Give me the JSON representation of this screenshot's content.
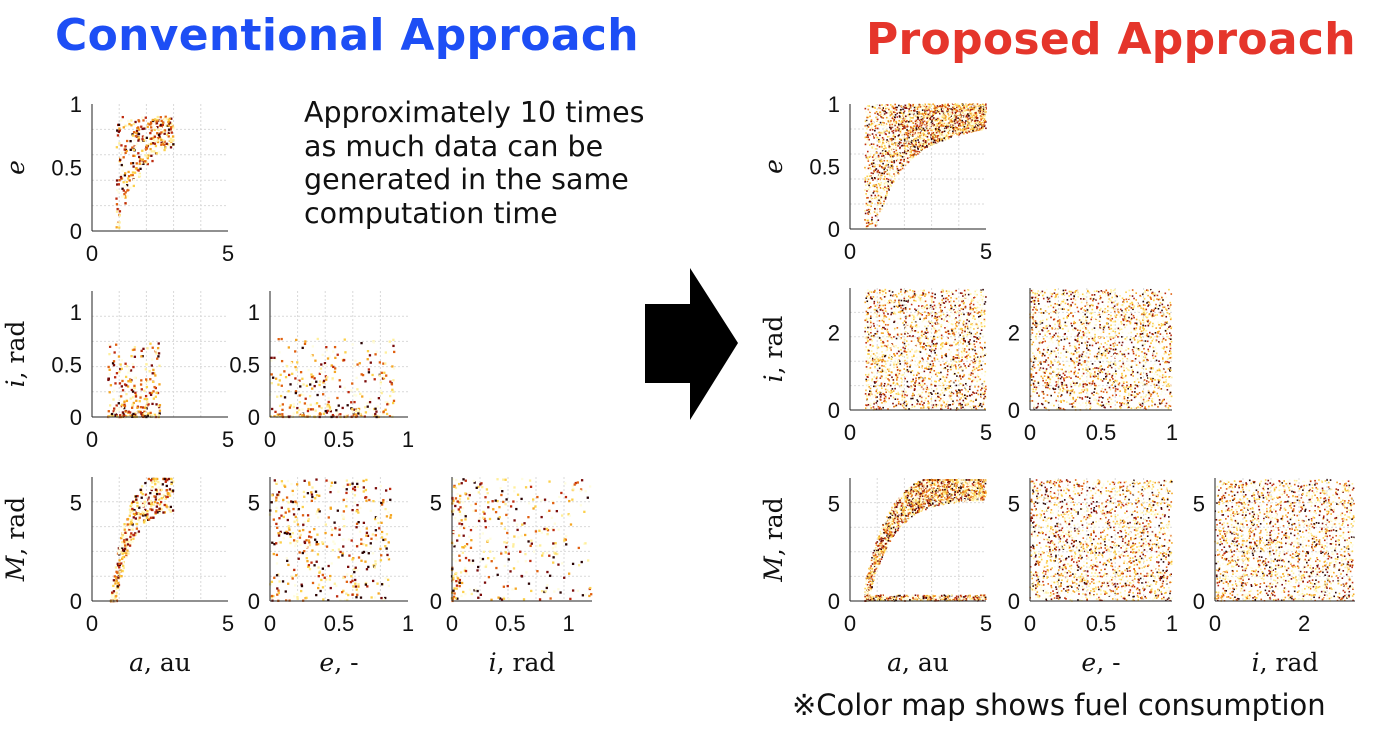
{
  "colors": {
    "conventional": "#1d4ef5",
    "proposed": "#e5352b",
    "arrow": "#000000",
    "grid": "#d9d9d9",
    "colormap": [
      "#fffde0",
      "#ffef9c",
      "#fcd04a",
      "#f5a623",
      "#e06010",
      "#bd2a0e",
      "#7a0b09",
      "#2a0303"
    ]
  },
  "titles": {
    "conventional": "Conventional Approach",
    "proposed": "Proposed Approach"
  },
  "note": {
    "lines": [
      "Approximately 10 times",
      "as much data can be",
      "generated in the same",
      "computation time"
    ]
  },
  "footnote": "※Color map shows fuel consumption",
  "chart_data": [
    {
      "group": "Conventional Approach",
      "type": "scatter",
      "xlabel": "",
      "ylabel": "e",
      "xlim": [
        0,
        5
      ],
      "ylim": [
        0,
        1
      ],
      "xticks": [
        "0",
        "5"
      ],
      "yticks": [
        "0",
        "0.5",
        "1"
      ],
      "grid": true
    },
    {
      "group": "Conventional Approach",
      "type": "scatter",
      "xlabel": "",
      "ylabel": "i, rad",
      "xlim": [
        0,
        5
      ],
      "ylim": [
        0,
        1.2
      ],
      "xticks": [
        "0",
        "5"
      ],
      "yticks": [
        "0",
        "0.5",
        "1"
      ],
      "grid": true
    },
    {
      "group": "Conventional Approach",
      "type": "scatter",
      "xlabel": "",
      "ylabel": "",
      "xlim": [
        0,
        1
      ],
      "ylim": [
        0,
        1.2
      ],
      "xticks": [
        "0",
        "0.5",
        "1"
      ],
      "yticks": [
        "0",
        "0.5",
        "1"
      ],
      "grid": true
    },
    {
      "group": "Conventional Approach",
      "type": "scatter",
      "xlabel": "a, au",
      "ylabel": "M, rad",
      "xlim": [
        0,
        5
      ],
      "ylim": [
        0,
        6.3
      ],
      "xticks": [
        "0",
        "5"
      ],
      "yticks": [
        "0",
        "5"
      ],
      "grid": true
    },
    {
      "group": "Conventional Approach",
      "type": "scatter",
      "xlabel": "e, -",
      "ylabel": "",
      "xlim": [
        0,
        1
      ],
      "ylim": [
        0,
        6.3
      ],
      "xticks": [
        "0",
        "0.5",
        "1"
      ],
      "yticks": [
        "0",
        "5"
      ],
      "grid": true
    },
    {
      "group": "Conventional Approach",
      "type": "scatter",
      "xlabel": "i, rad",
      "ylabel": "",
      "xlim": [
        0,
        1.2
      ],
      "ylim": [
        0,
        6.3
      ],
      "xticks": [
        "0",
        "0.5",
        "1"
      ],
      "yticks": [
        "0",
        "5"
      ],
      "grid": true
    },
    {
      "group": "Proposed Approach",
      "type": "scatter",
      "xlabel": "",
      "ylabel": "e",
      "xlim": [
        0,
        5
      ],
      "ylim": [
        0,
        1
      ],
      "xticks": [
        "0",
        "5"
      ],
      "yticks": [
        "0",
        "0.5",
        "1"
      ],
      "grid": true
    },
    {
      "group": "Proposed Approach",
      "type": "scatter",
      "xlabel": "",
      "ylabel": "i, rad",
      "xlim": [
        0,
        5
      ],
      "ylim": [
        0,
        3.14
      ],
      "xticks": [
        "0",
        "5"
      ],
      "yticks": [
        "0",
        "2"
      ],
      "grid": true
    },
    {
      "group": "Proposed Approach",
      "type": "scatter",
      "xlabel": "",
      "ylabel": "",
      "xlim": [
        0,
        1
      ],
      "ylim": [
        0,
        3.14
      ],
      "xticks": [
        "0",
        "0.5",
        "1"
      ],
      "yticks": [
        "0",
        "2"
      ],
      "grid": true
    },
    {
      "group": "Proposed Approach",
      "type": "scatter",
      "xlabel": "a, au",
      "ylabel": "M, rad",
      "xlim": [
        0,
        5
      ],
      "ylim": [
        0,
        6.3
      ],
      "xticks": [
        "0",
        "5"
      ],
      "yticks": [
        "0",
        "5"
      ],
      "grid": true
    },
    {
      "group": "Proposed Approach",
      "type": "scatter",
      "xlabel": "e, -",
      "ylabel": "",
      "xlim": [
        0,
        1
      ],
      "ylim": [
        0,
        6.3
      ],
      "xticks": [
        "0",
        "0.5",
        "1"
      ],
      "yticks": [
        "0",
        "5"
      ],
      "grid": true
    },
    {
      "group": "Proposed Approach",
      "type": "scatter",
      "xlabel": "i, rad",
      "ylabel": "",
      "xlim": [
        0,
        3.14
      ],
      "ylim": [
        0,
        6.3
      ],
      "xticks": [
        "0",
        "2"
      ],
      "yticks": [
        "0",
        "5"
      ],
      "grid": true
    }
  ]
}
